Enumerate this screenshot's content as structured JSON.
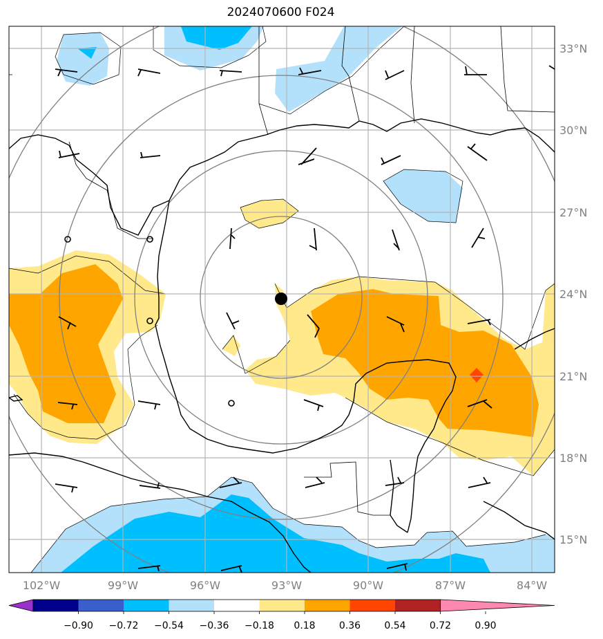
{
  "title": "2024070600 F024",
  "lon_labels": [
    "102°W",
    "99°W",
    "96°W",
    "93°W",
    "90°W",
    "87°W",
    "84°W"
  ],
  "lat_labels": [
    "33°N",
    "30°N",
    "27°N",
    "24°N",
    "21°N",
    "18°N",
    "15°N"
  ],
  "colorbar": {
    "tick_labels": [
      "−0.90",
      "−0.72",
      "−0.54",
      "−0.36",
      "−0.18",
      "0.18",
      "0.36",
      "0.54",
      "0.72",
      "0.90"
    ],
    "colors": [
      "#9932cc",
      "#00008b",
      "#3a5fcd",
      "#00bfff",
      "#b3e0fa",
      "#ffffff",
      "#ffe98a",
      "#ffa500",
      "#ff4500",
      "#b22222",
      "#ff88b0"
    ]
  },
  "storm_center": {
    "lon": -93.2,
    "lat": 23.8
  },
  "colors": {
    "light_blue": "#b3e0fa",
    "blue": "#00bfff",
    "yellow": "#ffe98a",
    "orange": "#ffa500",
    "red_orange": "#ff4500",
    "grid": "#b4b4b4",
    "ring": "#808080",
    "label": "#808080"
  }
}
